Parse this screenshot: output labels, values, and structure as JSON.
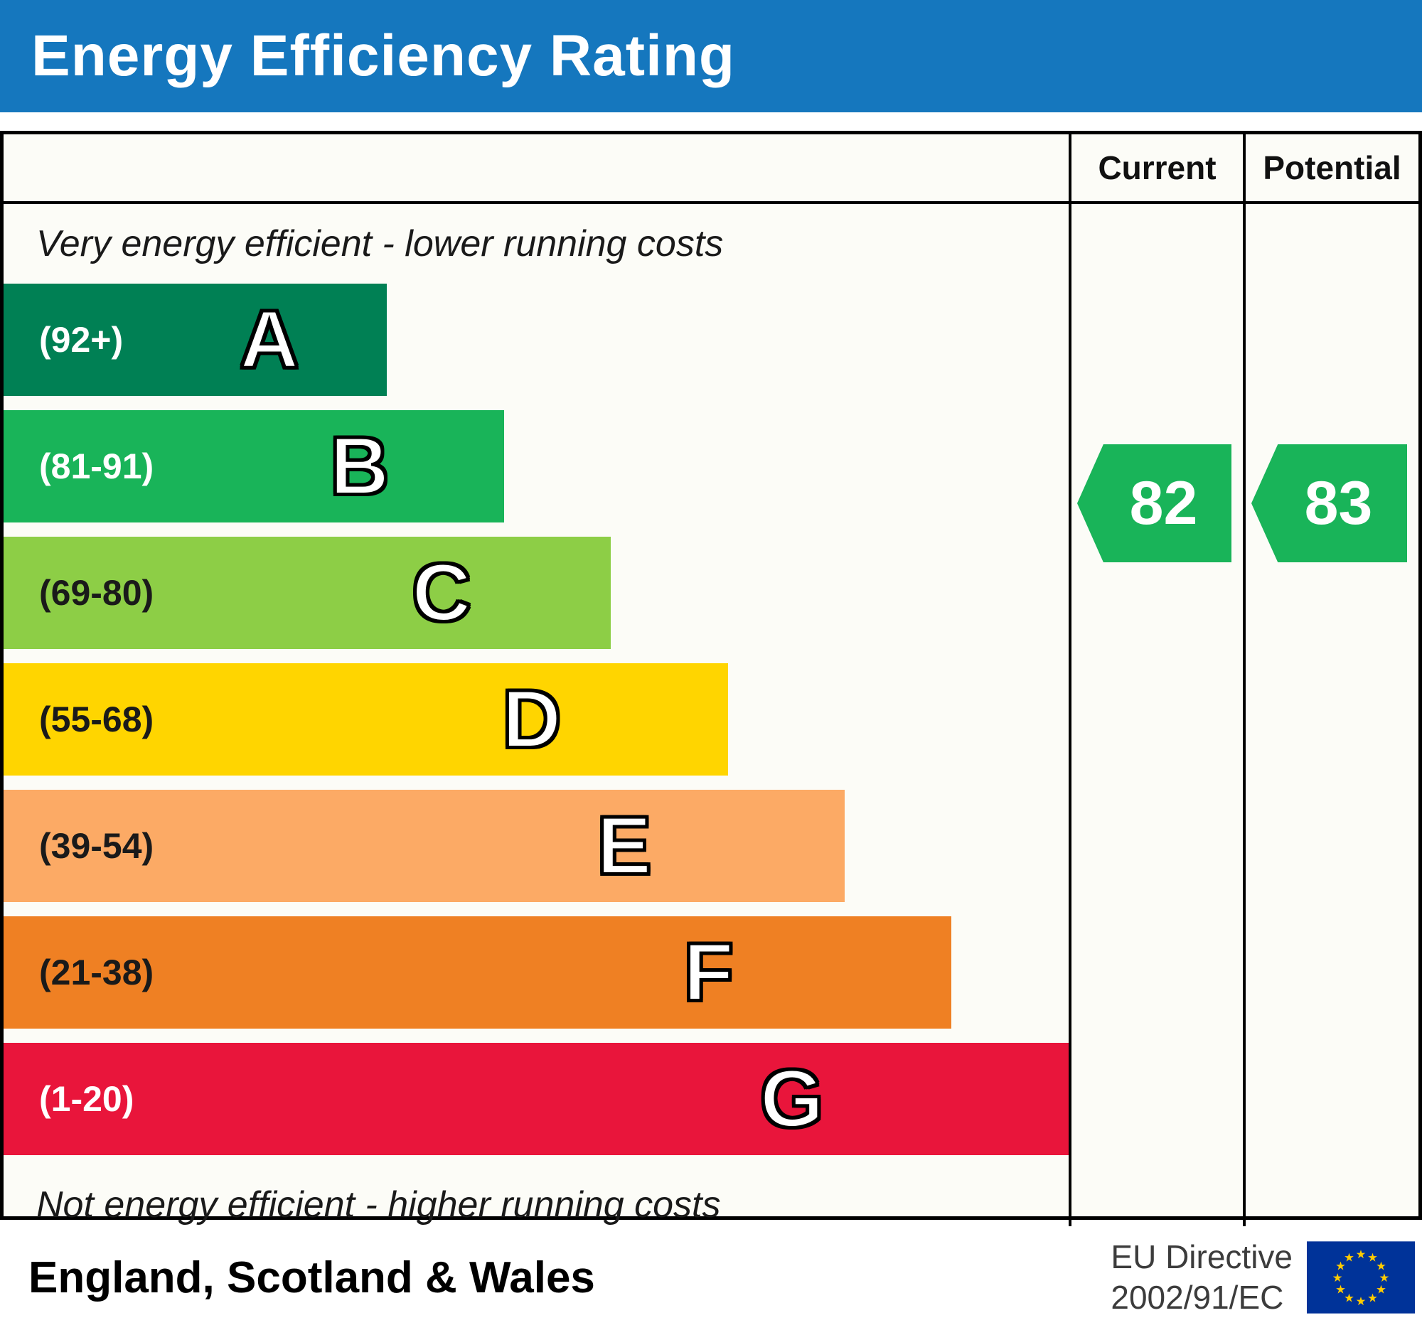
{
  "title": "Energy Efficiency Rating",
  "colors": {
    "header_bg": "#1577be",
    "chart_bg": "#fcfcf7",
    "arrow_green": "#19b459"
  },
  "header": {
    "current_label": "Current",
    "potential_label": "Potential"
  },
  "notes": {
    "top": "Very energy efficient - lower running costs",
    "bottom": "Not energy efficient - higher running costs"
  },
  "bands": [
    {
      "letter": "A",
      "range": "(92+)",
      "color": "#008054",
      "width_pct": 36,
      "range_text_color": "#ffffff"
    },
    {
      "letter": "B",
      "range": "(81-91)",
      "color": "#19b459",
      "width_pct": 47,
      "range_text_color": "#ffffff"
    },
    {
      "letter": "C",
      "range": "(69-80)",
      "color": "#8dce46",
      "width_pct": 57,
      "range_text_color": "#1a1a1a"
    },
    {
      "letter": "D",
      "range": "(55-68)",
      "color": "#ffd500",
      "width_pct": 68,
      "range_text_color": "#1a1a1a"
    },
    {
      "letter": "E",
      "range": "(39-54)",
      "color": "#fcaa65",
      "width_pct": 79,
      "range_text_color": "#1a1a1a"
    },
    {
      "letter": "F",
      "range": "(21-38)",
      "color": "#ef8023",
      "width_pct": 89,
      "range_text_color": "#1a1a1a"
    },
    {
      "letter": "G",
      "range": "(1-20)",
      "color": "#e9153b",
      "width_pct": 100,
      "range_text_color": "#ffffff"
    }
  ],
  "ratings": {
    "current": {
      "value": "82",
      "band": "B",
      "color": "#19b459"
    },
    "potential": {
      "value": "83",
      "band": "B",
      "color": "#19b459"
    }
  },
  "footer": {
    "region": "England, Scotland & Wales",
    "directive_line1": "EU Directive",
    "directive_line2": "2002/91/EC"
  },
  "chart_data": {
    "type": "bar",
    "title": "Energy Efficiency Rating",
    "categories": [
      "A (92+)",
      "B (81-91)",
      "C (69-80)",
      "D (55-68)",
      "E (39-54)",
      "F (21-38)",
      "G (1-20)"
    ],
    "band_ranges": [
      [
        92,
        100
      ],
      [
        81,
        91
      ],
      [
        69,
        80
      ],
      [
        55,
        68
      ],
      [
        39,
        54
      ],
      [
        21,
        38
      ],
      [
        1,
        20
      ]
    ],
    "bar_width_pct": [
      36,
      47,
      57,
      68,
      79,
      89,
      100
    ],
    "colors": [
      "#008054",
      "#19b459",
      "#8dce46",
      "#ffd500",
      "#fcaa65",
      "#ef8023",
      "#e9153b"
    ],
    "series": [
      {
        "name": "Current",
        "values": [
          82
        ]
      },
      {
        "name": "Potential",
        "values": [
          83
        ]
      }
    ],
    "current": 82,
    "potential": 83,
    "top_annotation": "Very energy efficient - lower running costs",
    "bottom_annotation": "Not energy efficient - higher running costs",
    "region": "England, Scotland & Wales",
    "directive": "EU Directive 2002/91/EC",
    "legend_position": "none",
    "grid": false
  }
}
